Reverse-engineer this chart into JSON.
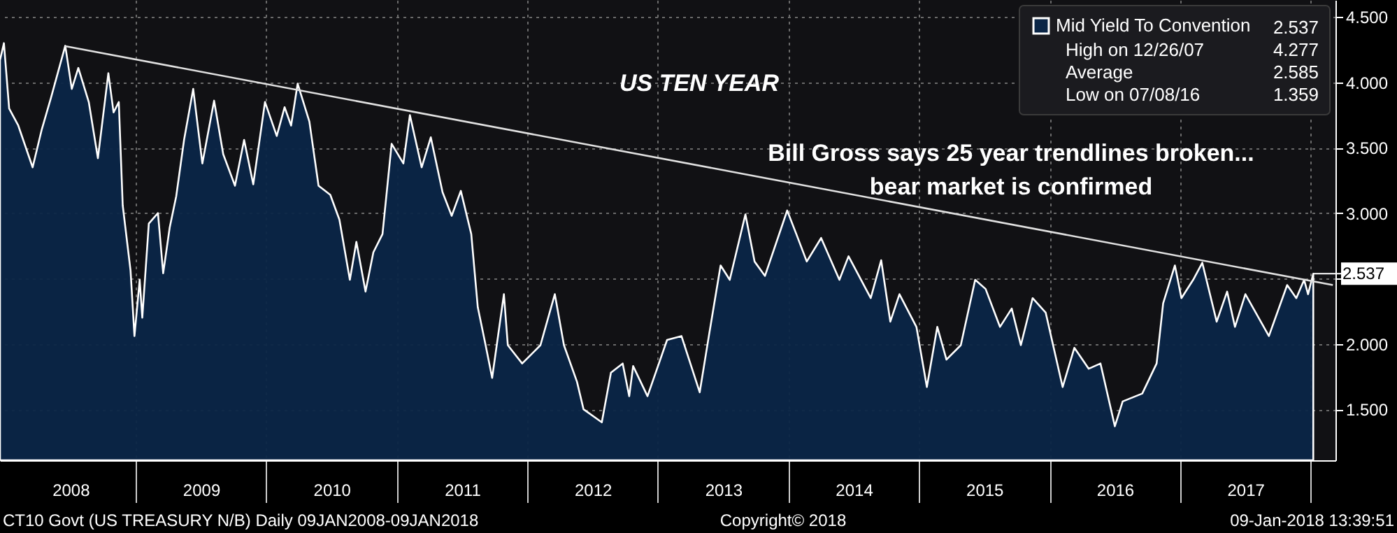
{
  "chart_data": {
    "type": "area",
    "title": "US TEN YEAR",
    "x": [
      2007.96,
      2007.99,
      2008.03,
      2008.1,
      2008.21,
      2008.28,
      2008.35,
      2008.46,
      2008.51,
      2008.56,
      2008.64,
      2008.71,
      2008.79,
      2008.83,
      2008.87,
      2008.9,
      2008.96,
      2008.99,
      2009.03,
      2009.05,
      2009.1,
      2009.17,
      2009.21,
      2009.26,
      2009.31,
      2009.37,
      2009.44,
      2009.51,
      2009.6,
      2009.67,
      2009.76,
      2009.83,
      2009.9,
      2009.99,
      2010.08,
      2010.14,
      2010.19,
      2010.24,
      2010.33,
      2010.4,
      2010.49,
      2010.56,
      2010.64,
      2010.69,
      2010.76,
      2010.82,
      2010.89,
      2010.96,
      2011.05,
      2011.1,
      2011.19,
      2011.26,
      2011.35,
      2011.42,
      2011.49,
      2011.57,
      2011.62,
      2011.68,
      2011.73,
      2011.82,
      2011.85,
      2011.96,
      2012.1,
      2012.21,
      2012.28,
      2012.38,
      2012.43,
      2012.57,
      2012.64,
      2012.73,
      2012.78,
      2012.81,
      2012.92,
      2013.07,
      2013.18,
      2013.32,
      2013.39,
      2013.48,
      2013.55,
      2013.67,
      2013.74,
      2013.82,
      2013.99,
      2014.06,
      2014.14,
      2014.25,
      2014.39,
      2014.46,
      2014.63,
      2014.71,
      2014.78,
      2014.85,
      2014.98,
      2015.06,
      2015.14,
      2015.21,
      2015.32,
      2015.43,
      2015.51,
      2015.62,
      2015.71,
      2015.78,
      2015.87,
      2015.97,
      2016.1,
      2016.19,
      2016.3,
      2016.39,
      2016.5,
      2016.56,
      2016.71,
      2016.82,
      2016.87,
      2016.96,
      2017.01,
      2017.1,
      2017.17,
      2017.28,
      2017.36,
      2017.42,
      2017.5,
      2017.68,
      2017.82,
      2017.89,
      2017.95,
      2017.98,
      2018.02
    ],
    "series": [
      {
        "name": "Mid Yield To Convention",
        "color": "#ffffff",
        "values": [
          4.17,
          4.3,
          3.8,
          3.67,
          3.35,
          3.64,
          3.88,
          4.28,
          3.95,
          4.11,
          3.85,
          3.42,
          4.07,
          3.77,
          3.85,
          3.06,
          2.56,
          2.06,
          2.49,
          2.2,
          2.92,
          3.0,
          2.54,
          2.89,
          3.13,
          3.56,
          3.95,
          3.38,
          3.86,
          3.45,
          3.21,
          3.56,
          3.22,
          3.85,
          3.59,
          3.81,
          3.67,
          3.99,
          3.7,
          3.21,
          3.14,
          2.95,
          2.49,
          2.78,
          2.4,
          2.7,
          2.84,
          3.53,
          3.38,
          3.75,
          3.35,
          3.58,
          3.16,
          2.98,
          3.17,
          2.84,
          2.28,
          1.99,
          1.74,
          2.38,
          1.99,
          1.85,
          1.99,
          2.38,
          1.99,
          1.71,
          1.5,
          1.4,
          1.78,
          1.85,
          1.6,
          1.83,
          1.6,
          2.03,
          2.06,
          1.63,
          2.06,
          2.6,
          2.49,
          2.99,
          2.63,
          2.52,
          3.02,
          2.84,
          2.63,
          2.81,
          2.49,
          2.67,
          2.35,
          2.64,
          2.17,
          2.38,
          2.13,
          1.67,
          2.13,
          1.88,
          1.99,
          2.49,
          2.42,
          2.13,
          2.27,
          1.99,
          2.35,
          2.24,
          1.67,
          1.97,
          1.81,
          1.85,
          1.37,
          1.56,
          1.62,
          1.85,
          2.31,
          2.6,
          2.35,
          2.49,
          2.62,
          2.17,
          2.4,
          2.13,
          2.38,
          2.06,
          2.45,
          2.35,
          2.49,
          2.38,
          2.537
        ]
      },
      {
        "type": "line",
        "color": "#e0e0e0",
        "x": [
          2008.46,
          2018.17
        ],
        "values": [
          4.277,
          2.45
        ]
      }
    ],
    "xlim": [
      2007.96,
      2018.19
    ],
    "ylim": [
      1.11,
      4.63
    ],
    "xticks": [
      {
        "value": 2008.5,
        "label": "2008"
      },
      {
        "value": 2009,
        "label": null
      },
      {
        "value": 2009.5,
        "label": "2009"
      },
      {
        "value": 2010,
        "label": null
      },
      {
        "value": 2010.5,
        "label": "2010"
      },
      {
        "value": 2011,
        "label": null
      },
      {
        "value": 2011.5,
        "label": "2011"
      },
      {
        "value": 2012,
        "label": null
      },
      {
        "value": 2012.5,
        "label": "2012"
      },
      {
        "value": 2013,
        "label": null
      },
      {
        "value": 2013.5,
        "label": "2013"
      },
      {
        "value": 2014,
        "label": null
      },
      {
        "value": 2014.5,
        "label": "2014"
      },
      {
        "value": 2015,
        "label": null
      },
      {
        "value": 2015.5,
        "label": "2015"
      },
      {
        "value": 2016,
        "label": null
      },
      {
        "value": 2016.5,
        "label": "2016"
      },
      {
        "value": 2017,
        "label": null
      },
      {
        "value": 2017.5,
        "label": "2017"
      },
      {
        "value": 2018,
        "label": null
      }
    ],
    "yticks": [
      {
        "value": 1.5,
        "label": "1.500"
      },
      {
        "value": 2,
        "label": "2.000"
      },
      {
        "value": 2.5,
        "label": null
      },
      {
        "value": 3,
        "label": "3.000"
      },
      {
        "value": 3.5,
        "label": "3.500"
      },
      {
        "value": 4,
        "label": "4.000"
      },
      {
        "value": 4.5,
        "label": "4.500"
      }
    ],
    "grid": true,
    "legend": "top right",
    "marker": "none",
    "line_style": "solid",
    "annotations": [
      "Bill Gross says 25 year trendlines broken...\nbear market is confirmed",
      "2.537",
      "High on 12/26/07",
      "4.277",
      "Average",
      "2.585",
      "Low on 07/08/16",
      "1.359",
      "CT10 Govt (US TREASURY N/B)  Daily 09JAN2008-09JAN2018",
      "Copyright© 2018",
      "09-Jan-2018 13:39:51",
      {
        "text": "2.537",
        "x": 2018.02,
        "y": 2.537
      }
    ]
  }
}
